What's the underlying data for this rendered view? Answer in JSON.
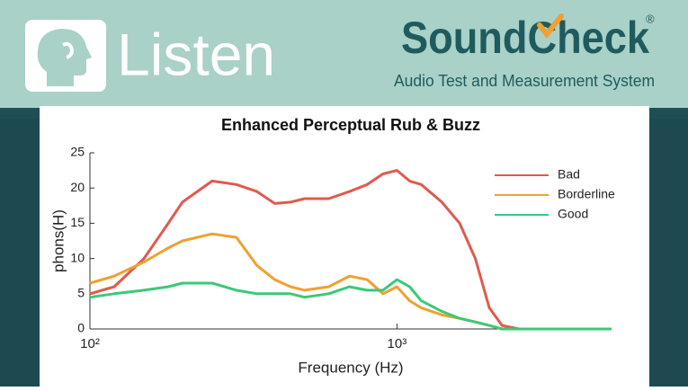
{
  "header": {
    "left_brand": "Listen",
    "right_brand": "SoundCheck",
    "registered": "®",
    "tagline": "Audio Test and Measurement System"
  },
  "chart_data": {
    "type": "line",
    "title": "Enhanced Perceptual Rub & Buzz",
    "x_label": "Frequency (Hz)",
    "y_label": "phons(H)",
    "x": [
      100,
      120,
      150,
      180,
      200,
      250,
      300,
      350,
      400,
      450,
      500,
      600,
      700,
      800,
      900,
      1000,
      1100,
      1200,
      1400,
      1600,
      1800,
      2000,
      2200,
      2500,
      3000,
      4000,
      5000
    ],
    "series": [
      {
        "name": "Bad",
        "color": "#e05a4e",
        "values": [
          5,
          6,
          10,
          15,
          18,
          21,
          20.5,
          19.5,
          17.8,
          18,
          18.5,
          18.5,
          19.5,
          20.5,
          22,
          22.5,
          21,
          20.5,
          18,
          15,
          10,
          3,
          0.5,
          0,
          0,
          0,
          0
        ]
      },
      {
        "name": "Borderline",
        "color": "#f0a030",
        "values": [
          6.5,
          7.5,
          9.5,
          11.5,
          12.5,
          13.5,
          13,
          9,
          7,
          6,
          5.5,
          6,
          7.5,
          7,
          5,
          6,
          4,
          3,
          2,
          1.5,
          1,
          0.5,
          0,
          0,
          0,
          0,
          0
        ]
      },
      {
        "name": "Good",
        "color": "#3cc878",
        "values": [
          4.5,
          5,
          5.5,
          6,
          6.5,
          6.5,
          5.5,
          5,
          5,
          5,
          4.5,
          5,
          6,
          5.5,
          5.5,
          7,
          6,
          4,
          2.5,
          1.5,
          1,
          0.5,
          0,
          0,
          0,
          0,
          0
        ]
      }
    ],
    "xlim": [
      100,
      5000
    ],
    "x_log": true,
    "xticks": [
      {
        "value": 100,
        "label": "10²"
      },
      {
        "value": 1000,
        "label": "10³"
      }
    ],
    "ylim": [
      0,
      25
    ],
    "yticks": [
      0,
      5,
      10,
      15,
      20,
      25
    ],
    "grid": false,
    "legend": "upper right"
  }
}
